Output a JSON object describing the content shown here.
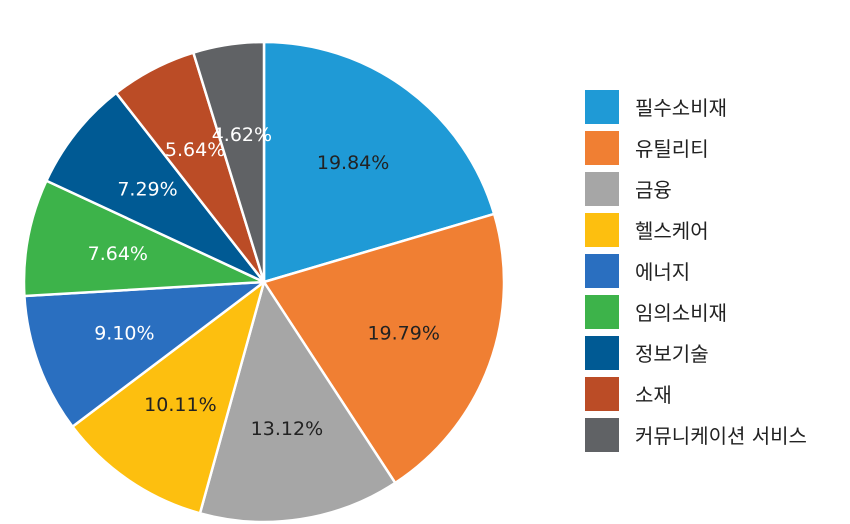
{
  "chart_data": {
    "type": "pie",
    "title": "",
    "slices": [
      {
        "label": "필수소비재",
        "value": 19.84,
        "value_label": "19.84%",
        "color": "#1f9ad6"
      },
      {
        "label": "유틸리티",
        "value": 19.79,
        "value_label": "19.79%",
        "color": "#f07f33"
      },
      {
        "label": "금융",
        "value": 13.12,
        "value_label": "13.12%",
        "color": "#a6a6a6"
      },
      {
        "label": "헬스케어",
        "value": 10.11,
        "value_label": "10.11%",
        "color": "#fdbf0f"
      },
      {
        "label": "에너지",
        "value": 9.1,
        "value_label": "9.10%",
        "color": "#2a6fc0"
      },
      {
        "label": "임의소비재",
        "value": 7.64,
        "value_label": "7.64%",
        "color": "#3db34a"
      },
      {
        "label": "정보기술",
        "value": 7.29,
        "value_label": "7.29%",
        "color": "#005a94"
      },
      {
        "label": "소재",
        "value": 5.64,
        "value_label": "5.64%",
        "color": "#bb4c26"
      },
      {
        "label": "커뮤니케이션 서비스",
        "value": 4.62,
        "value_label": "4.62%",
        "color": "#606265"
      }
    ],
    "legend_position": "right"
  }
}
